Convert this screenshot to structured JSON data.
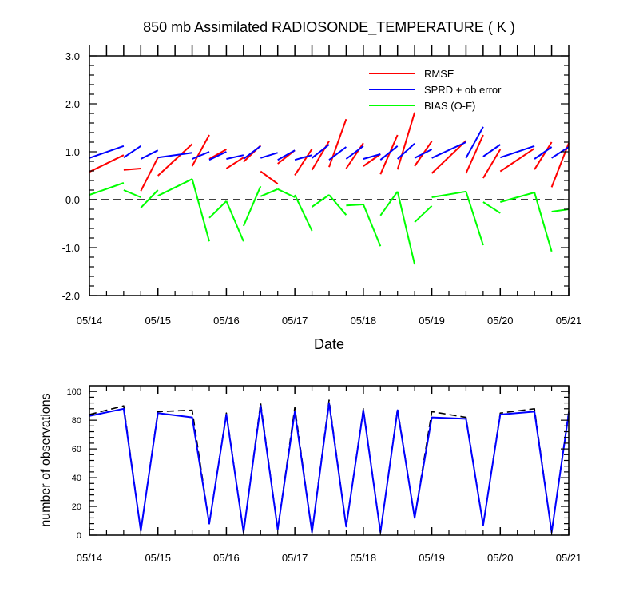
{
  "chart_data": [
    {
      "type": "line",
      "title": "850 mb Assimilated RADIOSONDE_TEMPERATURE ( K )",
      "xlabel": "Date",
      "ylabel": "",
      "ylim": [
        -2.0,
        3.0
      ],
      "xlim": [
        "05/14 00Z",
        "05/21 00Z"
      ],
      "x_ticks": [
        "05/14",
        "05/15",
        "05/16",
        "05/17",
        "05/18",
        "05/19",
        "05/20",
        "05/21"
      ],
      "y_ticks": [
        "-2.0",
        "-1.0",
        "0.0",
        "1.0",
        "2.0",
        "3.0"
      ],
      "reference_line": {
        "y": 0.0,
        "style": "dashed",
        "color": "#000000"
      },
      "legend": {
        "placement": "top-right"
      },
      "series": [
        {
          "name": "RMSE",
          "color": "#ff0000",
          "segments": [
            [
              [
                0.0,
                0.58
              ],
              [
                0.5,
                0.93
              ]
            ],
            [
              [
                0.5,
                0.62
              ],
              [
                0.75,
                0.65
              ]
            ],
            [
              [
                0.75,
                0.18
              ],
              [
                1.0,
                0.88
              ]
            ],
            [
              [
                1.0,
                0.5
              ],
              [
                1.5,
                1.16
              ]
            ],
            [
              [
                1.5,
                0.7
              ],
              [
                1.75,
                1.35
              ]
            ],
            [
              [
                1.75,
                0.85
              ],
              [
                2.0,
                1.05
              ]
            ],
            [
              [
                2.0,
                0.65
              ],
              [
                2.25,
                0.88
              ]
            ],
            [
              [
                2.25,
                0.79
              ],
              [
                2.5,
                1.13
              ]
            ],
            [
              [
                2.5,
                0.59
              ],
              [
                2.75,
                0.33
              ]
            ],
            [
              [
                2.75,
                0.75
              ],
              [
                3.0,
                1.03
              ]
            ],
            [
              [
                3.0,
                0.51
              ],
              [
                3.25,
                1.06
              ]
            ],
            [
              [
                3.25,
                0.62
              ],
              [
                3.5,
                1.22
              ]
            ],
            [
              [
                3.5,
                0.68
              ],
              [
                3.75,
                1.68
              ]
            ],
            [
              [
                3.75,
                0.65
              ],
              [
                4.0,
                1.18
              ]
            ],
            [
              [
                4.0,
                0.7
              ],
              [
                4.25,
                0.95
              ]
            ],
            [
              [
                4.25,
                0.53
              ],
              [
                4.5,
                1.35
              ]
            ],
            [
              [
                4.5,
                0.63
              ],
              [
                4.75,
                1.82
              ]
            ],
            [
              [
                4.75,
                0.7
              ],
              [
                5.0,
                1.22
              ]
            ],
            [
              [
                5.0,
                0.55
              ],
              [
                5.5,
                1.23
              ]
            ],
            [
              [
                5.5,
                0.55
              ],
              [
                5.75,
                1.35
              ]
            ],
            [
              [
                5.75,
                0.45
              ],
              [
                6.0,
                1.05
              ]
            ],
            [
              [
                6.0,
                0.59
              ],
              [
                6.5,
                1.07
              ]
            ],
            [
              [
                6.5,
                0.63
              ],
              [
                6.75,
                1.2
              ]
            ],
            [
              [
                6.75,
                0.26
              ],
              [
                7.0,
                1.18
              ]
            ]
          ]
        },
        {
          "name": "SPRD + ob error",
          "color": "#0000ff",
          "segments": [
            [
              [
                0.0,
                0.87
              ],
              [
                0.5,
                1.12
              ]
            ],
            [
              [
                0.5,
                0.88
              ],
              [
                0.75,
                1.12
              ]
            ],
            [
              [
                0.75,
                0.85
              ],
              [
                1.0,
                1.03
              ]
            ],
            [
              [
                1.0,
                0.88
              ],
              [
                1.5,
                0.98
              ]
            ],
            [
              [
                1.5,
                0.85
              ],
              [
                1.75,
                1.0
              ]
            ],
            [
              [
                1.75,
                0.83
              ],
              [
                2.0,
                1.0
              ]
            ],
            [
              [
                2.0,
                0.85
              ],
              [
                2.25,
                0.93
              ]
            ],
            [
              [
                2.25,
                0.85
              ],
              [
                2.5,
                1.12
              ]
            ],
            [
              [
                2.5,
                0.87
              ],
              [
                2.75,
                0.98
              ]
            ],
            [
              [
                2.75,
                0.83
              ],
              [
                3.0,
                1.03
              ]
            ],
            [
              [
                3.0,
                0.83
              ],
              [
                3.25,
                0.93
              ]
            ],
            [
              [
                3.25,
                0.87
              ],
              [
                3.5,
                1.15
              ]
            ],
            [
              [
                3.5,
                0.83
              ],
              [
                3.75,
                1.1
              ]
            ],
            [
              [
                3.75,
                0.85
              ],
              [
                4.0,
                1.12
              ]
            ],
            [
              [
                4.0,
                0.85
              ],
              [
                4.25,
                0.95
              ]
            ],
            [
              [
                4.25,
                0.83
              ],
              [
                4.5,
                1.12
              ]
            ],
            [
              [
                4.5,
                0.85
              ],
              [
                4.75,
                1.17
              ]
            ],
            [
              [
                4.75,
                0.87
              ],
              [
                5.0,
                1.05
              ]
            ],
            [
              [
                5.0,
                0.87
              ],
              [
                5.5,
                1.2
              ]
            ],
            [
              [
                5.5,
                0.87
              ],
              [
                5.75,
                1.52
              ]
            ],
            [
              [
                5.75,
                0.9
              ],
              [
                6.0,
                1.15
              ]
            ],
            [
              [
                6.0,
                0.88
              ],
              [
                6.5,
                1.12
              ]
            ],
            [
              [
                6.5,
                0.85
              ],
              [
                6.75,
                1.1
              ]
            ],
            [
              [
                6.75,
                0.87
              ],
              [
                7.0,
                1.1
              ]
            ]
          ]
        },
        {
          "name": "BIAS (O-F)",
          "color": "#00ff00",
          "segments": [
            [
              [
                0.0,
                0.1
              ],
              [
                0.5,
                0.35
              ]
            ],
            [
              [
                0.5,
                0.2
              ],
              [
                0.75,
                0.05
              ]
            ],
            [
              [
                0.75,
                -0.17
              ],
              [
                1.0,
                0.2
              ]
            ],
            [
              [
                1.0,
                0.08
              ],
              [
                1.5,
                0.43
              ]
            ],
            [
              [
                1.5,
                0.43
              ],
              [
                1.75,
                -0.87
              ]
            ],
            [
              [
                1.75,
                -0.38
              ],
              [
                2.0,
                -0.03
              ]
            ],
            [
              [
                2.0,
                -0.03
              ],
              [
                2.25,
                -0.87
              ]
            ],
            [
              [
                2.25,
                -0.55
              ],
              [
                2.5,
                0.28
              ]
            ],
            [
              [
                2.5,
                0.07
              ],
              [
                2.75,
                0.22
              ]
            ],
            [
              [
                2.75,
                0.22
              ],
              [
                3.0,
                0.05
              ]
            ],
            [
              [
                3.0,
                0.1
              ],
              [
                3.25,
                -0.65
              ]
            ],
            [
              [
                3.25,
                -0.15
              ],
              [
                3.5,
                0.1
              ]
            ],
            [
              [
                3.5,
                0.1
              ],
              [
                3.75,
                -0.32
              ]
            ],
            [
              [
                3.75,
                -0.12
              ],
              [
                4.0,
                -0.1
              ]
            ],
            [
              [
                4.0,
                -0.1
              ],
              [
                4.25,
                -0.97
              ]
            ],
            [
              [
                4.25,
                -0.33
              ],
              [
                4.5,
                0.17
              ]
            ],
            [
              [
                4.5,
                0.17
              ],
              [
                4.75,
                -1.35
              ]
            ],
            [
              [
                4.75,
                -0.47
              ],
              [
                5.0,
                -0.13
              ]
            ],
            [
              [
                5.0,
                0.05
              ],
              [
                5.5,
                0.17
              ]
            ],
            [
              [
                5.5,
                0.17
              ],
              [
                5.75,
                -0.95
              ]
            ],
            [
              [
                5.75,
                -0.05
              ],
              [
                6.0,
                -0.28
              ]
            ],
            [
              [
                6.0,
                -0.05
              ],
              [
                6.5,
                0.15
              ]
            ],
            [
              [
                6.5,
                0.15
              ],
              [
                6.75,
                -1.08
              ]
            ],
            [
              [
                6.75,
                -0.25
              ],
              [
                7.0,
                -0.2
              ]
            ]
          ]
        }
      ]
    },
    {
      "type": "line",
      "title": "",
      "xlabel": "",
      "ylabel": "number of observations",
      "ylim": [
        0,
        104
      ],
      "xlim": [
        "05/14 00Z",
        "05/21 00Z"
      ],
      "x_ticks": [
        "05/14",
        "05/15",
        "05/16",
        "05/17",
        "05/18",
        "05/19",
        "05/20",
        "05/21"
      ],
      "y_ticks": [
        "0",
        "20",
        "40",
        "60",
        "80",
        "100"
      ],
      "x": [
        0.0,
        0.5,
        0.75,
        1.0,
        1.5,
        1.75,
        2.0,
        2.25,
        2.5,
        2.75,
        3.0,
        3.25,
        3.5,
        3.75,
        4.0,
        4.25,
        4.5,
        4.75,
        5.0,
        5.5,
        5.75,
        6.0,
        6.5,
        6.75,
        7.0
      ],
      "series": [
        {
          "style": "dashed",
          "color": "#000000",
          "values": [
            84,
            90,
            3,
            86,
            87,
            8,
            85,
            2,
            92,
            4,
            89,
            2,
            94,
            6,
            88,
            2,
            88,
            12,
            86,
            82,
            7,
            85,
            88,
            2,
            86
          ]
        },
        {
          "style": "solid",
          "color": "#0000ff",
          "values": [
            83,
            88,
            3,
            85,
            82,
            8,
            84,
            2,
            90,
            4,
            86,
            2,
            92,
            6,
            87,
            2,
            87,
            12,
            82,
            81,
            7,
            84,
            86,
            2,
            85
          ]
        }
      ]
    }
  ]
}
